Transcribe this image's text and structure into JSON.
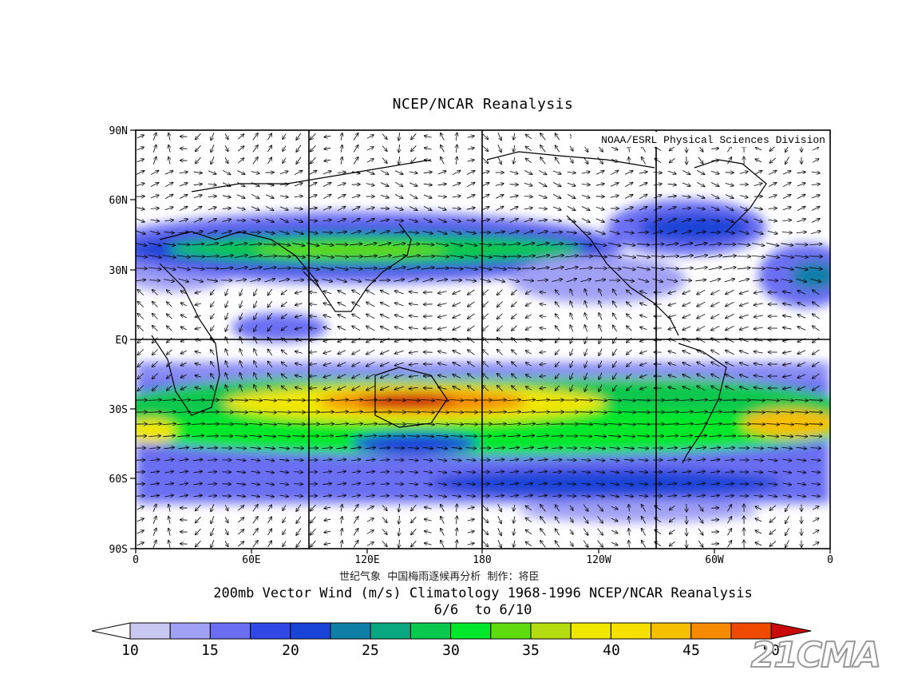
{
  "title": "NCEP/NCAR Reanalysis",
  "credit": "NOAA/ESRL Physical Sciences Division",
  "lat_labels": [
    "90N",
    "60N",
    "30N",
    "EQ",
    "30S",
    "60S",
    "90S"
  ],
  "lon_labels": [
    "0",
    "60E",
    "120E",
    "180",
    "120W",
    "60W",
    "0"
  ],
  "chinese_caption": "世纪气象  中国梅雨逐候再分析  制作：将臣",
  "caption_line1": "200mb Vector Wind (m/s) Climatology 1968-1996 NCEP/NCAR Reanalysis",
  "caption_line2": "6/6  to 6/10",
  "colorbar": {
    "labels": [
      "10",
      "15",
      "20",
      "25",
      "30",
      "35",
      "40",
      "45",
      "50"
    ],
    "colors": [
      "#c8c8f0",
      "#a0a0f5",
      "#6a6ef2",
      "#2f48e6",
      "#1a44d8",
      "#0f7fa8",
      "#09a880",
      "#08c84e",
      "#00e82c",
      "#5edc10",
      "#b4dc10",
      "#f0e600",
      "#f5e000",
      "#f5c000",
      "#f58a00",
      "#f04a00",
      "#c80a0a"
    ]
  },
  "watermark": "21CMA",
  "map": {
    "variable": "200mb vector wind speed (m/s)",
    "colors": {
      "white": "#ffffff",
      "lavender": "#c8c8f0",
      "blue": "#2f48e6",
      "green": "#08c84e",
      "yellow": "#f0e600",
      "red": "#c80a0a",
      "grid": "#000000"
    }
  }
}
